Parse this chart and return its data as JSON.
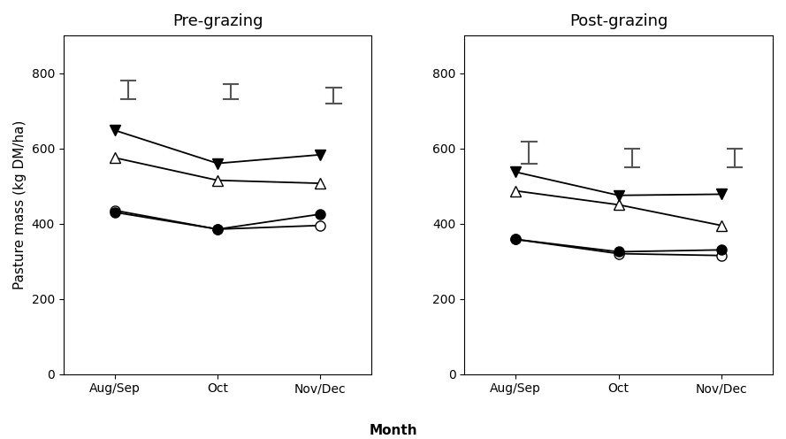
{
  "title_left": "Pre-grazing",
  "title_right": "Post-grazing",
  "xlabel": "Month",
  "ylabel": "Pasture mass (kg DM/ha)",
  "x_labels": [
    "Aug/Sep",
    "Oct",
    "Nov/Dec"
  ],
  "x_positions": [
    0,
    1,
    2
  ],
  "ylim": [
    0,
    900
  ],
  "yticks": [
    0,
    200,
    400,
    600,
    800
  ],
  "pre_grazing": {
    "advance_HF": [
      430,
      385,
      425
    ],
    "advance_LF": [
      435,
      385,
      395
    ],
    "mt_HF": [
      648,
      560,
      583
    ],
    "mt_LF": [
      575,
      515,
      507
    ]
  },
  "post_grazing": {
    "advance_HF": [
      358,
      325,
      330
    ],
    "advance_LF": [
      358,
      320,
      315
    ],
    "mt_HF": [
      537,
      475,
      478
    ],
    "mt_LF": [
      487,
      450,
      395
    ]
  },
  "error_bars_pre": {
    "Aug_Sep": [
      730,
      780
    ],
    "Oct": [
      730,
      772
    ],
    "Nov_Dec": [
      718,
      762
    ]
  },
  "error_bars_post": {
    "Aug_Sep": [
      560,
      618
    ],
    "Oct": [
      550,
      600
    ],
    "Nov_Dec": [
      550,
      600
    ]
  },
  "line_color": "#000000",
  "marker_size": 8,
  "title_fontsize": 13,
  "label_fontsize": 11,
  "tick_fontsize": 10,
  "error_bar_color": "#555555",
  "error_bar_lw": 1.5,
  "error_bar_cap_w": 0.07,
  "error_bar_x_offset": 0.13
}
